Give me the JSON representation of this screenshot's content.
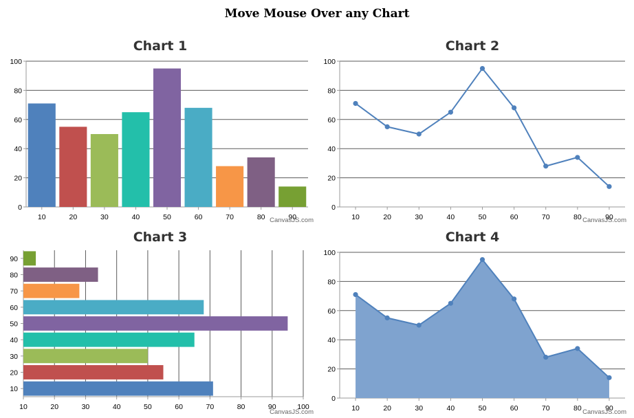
{
  "page": {
    "title": "Move Mouse Over any Chart"
  },
  "credit": "CanvasJS.com",
  "palette": [
    "#4F81BC",
    "#C0504E",
    "#9BBB58",
    "#23BFAA",
    "#8064A1",
    "#4AACC5",
    "#F79647",
    "#7F6084",
    "#77A033"
  ],
  "line_color": "#4F81BC",
  "area_fill": "#7FA3CF",
  "chart_data": [
    {
      "type": "bar",
      "orientation": "vertical",
      "title": "Chart 1",
      "x": [
        10,
        20,
        30,
        40,
        50,
        60,
        70,
        80,
        90
      ],
      "values": [
        71,
        55,
        50,
        65,
        95,
        68,
        28,
        34,
        14
      ],
      "ylim": [
        0,
        100
      ],
      "yticks": [
        0,
        20,
        40,
        60,
        80,
        100
      ],
      "grid": true,
      "legend": "none"
    },
    {
      "type": "line",
      "title": "Chart 2",
      "x": [
        10,
        20,
        30,
        40,
        50,
        60,
        70,
        80,
        90
      ],
      "values": [
        71,
        55,
        50,
        65,
        95,
        68,
        28,
        34,
        14
      ],
      "ylim": [
        0,
        100
      ],
      "yticks": [
        0,
        20,
        40,
        60,
        80,
        100
      ],
      "grid": true,
      "legend": "none"
    },
    {
      "type": "bar",
      "orientation": "horizontal",
      "title": "Chart 3",
      "categories": [
        10,
        20,
        30,
        40,
        50,
        60,
        70,
        80,
        90
      ],
      "values": [
        71,
        55,
        50,
        65,
        95,
        68,
        28,
        34,
        14
      ],
      "xlim": [
        10,
        100
      ],
      "xticks": [
        10,
        20,
        30,
        40,
        50,
        60,
        70,
        80,
        90,
        100
      ],
      "grid": true,
      "legend": "none"
    },
    {
      "type": "area",
      "title": "Chart 4",
      "x": [
        10,
        20,
        30,
        40,
        50,
        60,
        70,
        80,
        90
      ],
      "values": [
        71,
        55,
        50,
        65,
        95,
        68,
        28,
        34,
        14
      ],
      "ylim": [
        0,
        100
      ],
      "yticks": [
        0,
        20,
        40,
        60,
        80,
        100
      ],
      "grid": true,
      "legend": "none"
    }
  ]
}
